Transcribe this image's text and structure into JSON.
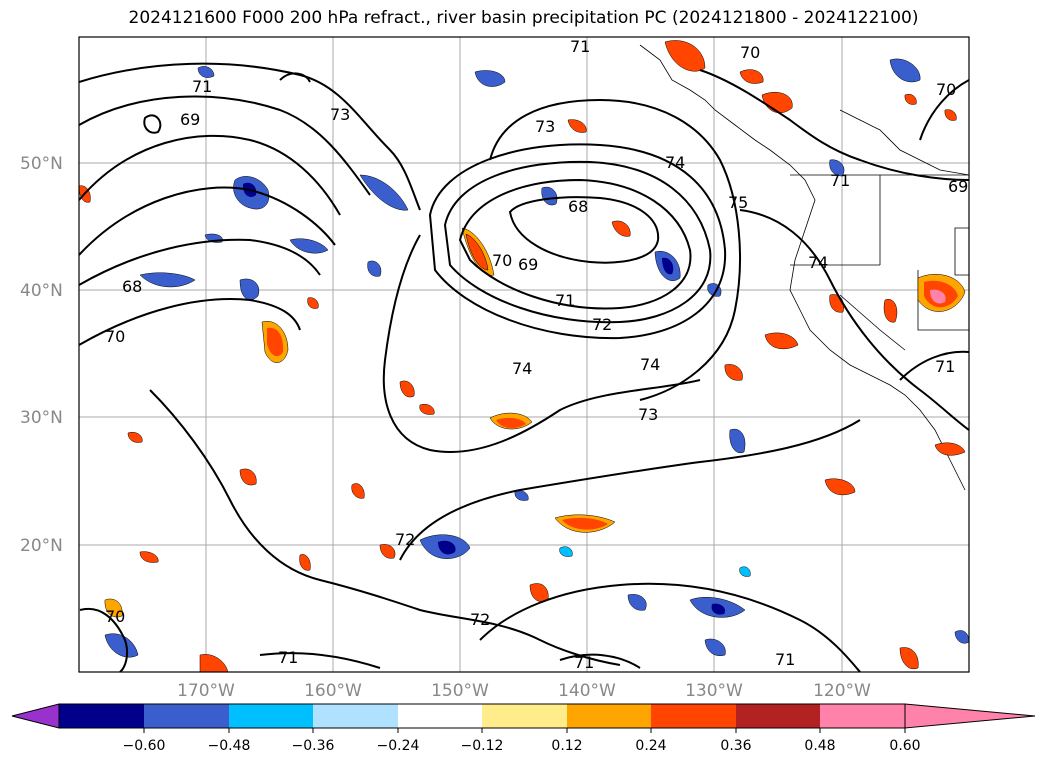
{
  "title": "2024121600 F000 200 hPa refract., river basin precipitation PC (2024121800 - 2024122100)",
  "lat_labels": [
    "50°N",
    "40°N",
    "30°N",
    "20°N"
  ],
  "lon_labels": [
    "170°W",
    "160°W",
    "150°W",
    "140°W",
    "130°W",
    "120°W"
  ],
  "colorbar": {
    "colors": [
      "#9932cc",
      "#00008b",
      "#3a5fcd",
      "#00bfff",
      "#b0e2ff",
      "#ffffff",
      "#ffec8b",
      "#ffa500",
      "#ff4500",
      "#b22222",
      "#ff82ab"
    ],
    "tick_labels": [
      "−0.60",
      "−0.48",
      "−0.36",
      "−0.24",
      "−0.12",
      "0.12",
      "0.24",
      "0.36",
      "0.48",
      "0.60"
    ]
  },
  "contour_labels": [
    "71",
    "69",
    "73",
    "71",
    "70",
    "73",
    "74",
    "75",
    "68",
    "70",
    "69",
    "71",
    "72",
    "74",
    "74",
    "73",
    "68",
    "70",
    "72",
    "72",
    "71",
    "71",
    "70",
    "71",
    "74",
    "69",
    "71",
    "71",
    "70"
  ]
}
